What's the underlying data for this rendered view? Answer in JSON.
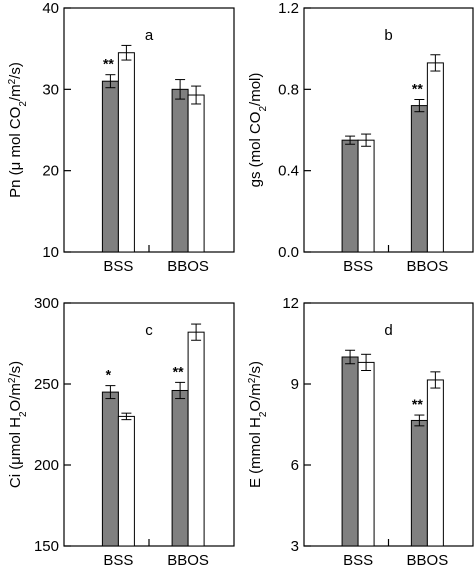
{
  "chart_data": [
    {
      "panel": "a",
      "type": "bar",
      "ylabel": "Pn (μ mol CO2/m2/s)",
      "ylabel_parts": [
        [
          "Pn (",
          ""
        ],
        [
          "μ",
          ""
        ],
        [
          " mol CO",
          ""
        ],
        [
          "2",
          "sub"
        ],
        [
          "/m",
          ""
        ],
        [
          "2",
          "sup"
        ],
        [
          "/s)",
          ""
        ]
      ],
      "ylim": [
        10,
        40
      ],
      "yticks": [
        10,
        20,
        30,
        40
      ],
      "categories": [
        "BSS",
        "BBOS"
      ],
      "series": [
        {
          "color": "#808080",
          "values": [
            31.0,
            30.0
          ],
          "errors": [
            0.8,
            1.2
          ]
        },
        {
          "color": "#ffffff",
          "values": [
            34.5,
            29.3
          ],
          "errors": [
            0.9,
            1.1
          ]
        }
      ],
      "annotations": [
        {
          "text": "**",
          "category": 0,
          "series": 0
        }
      ]
    },
    {
      "panel": "b",
      "type": "bar",
      "ylabel": "gs (mol CO2/mol)",
      "ylabel_parts": [
        [
          "gs (mol CO",
          ""
        ],
        [
          "2",
          "sub"
        ],
        [
          "/mol)",
          ""
        ]
      ],
      "ylim": [
        0.0,
        1.2
      ],
      "yticks": [
        0.0,
        0.4,
        0.8,
        1.2
      ],
      "tick_decimals": 1,
      "categories": [
        "BSS",
        "BBOS"
      ],
      "series": [
        {
          "color": "#808080",
          "values": [
            0.55,
            0.72
          ],
          "errors": [
            0.02,
            0.03
          ]
        },
        {
          "color": "#ffffff",
          "values": [
            0.55,
            0.93
          ],
          "errors": [
            0.03,
            0.04
          ]
        }
      ],
      "annotations": [
        {
          "text": "**",
          "category": 1,
          "series": 0
        }
      ]
    },
    {
      "panel": "c",
      "type": "bar",
      "ylabel": "Ci (μmol H2O/m2/s)",
      "ylabel_parts": [
        [
          "Ci (",
          ""
        ],
        [
          "μ",
          ""
        ],
        [
          "mol H",
          ""
        ],
        [
          "2",
          "sub"
        ],
        [
          "O/m",
          ""
        ],
        [
          "2",
          "sup"
        ],
        [
          "/s)",
          ""
        ]
      ],
      "ylim": [
        150,
        300
      ],
      "yticks": [
        150,
        200,
        250,
        300
      ],
      "categories": [
        "BSS",
        "BBOS"
      ],
      "series": [
        {
          "color": "#808080",
          "values": [
            245,
            246
          ],
          "errors": [
            4,
            5
          ]
        },
        {
          "color": "#ffffff",
          "values": [
            230,
            282
          ],
          "errors": [
            2,
            5
          ]
        }
      ],
      "annotations": [
        {
          "text": "*",
          "category": 0,
          "series": 0
        },
        {
          "text": "**",
          "category": 1,
          "series": 0
        }
      ]
    },
    {
      "panel": "d",
      "type": "bar",
      "ylabel": "E (mmol H2O/m2/s)",
      "ylabel_parts": [
        [
          "E (mmol H",
          ""
        ],
        [
          "2",
          "sub"
        ],
        [
          "O/m",
          ""
        ],
        [
          "2",
          "sup"
        ],
        [
          "/s)",
          ""
        ]
      ],
      "ylim": [
        3,
        12
      ],
      "yticks": [
        3,
        6,
        9,
        12
      ],
      "categories": [
        "BSS",
        "BBOS"
      ],
      "series": [
        {
          "color": "#808080",
          "values": [
            10.0,
            7.65
          ],
          "errors": [
            0.25,
            0.2
          ]
        },
        {
          "color": "#ffffff",
          "values": [
            9.8,
            9.15
          ],
          "errors": [
            0.3,
            0.3
          ]
        }
      ],
      "annotations": [
        {
          "text": "**",
          "category": 1,
          "series": 0
        }
      ]
    }
  ]
}
